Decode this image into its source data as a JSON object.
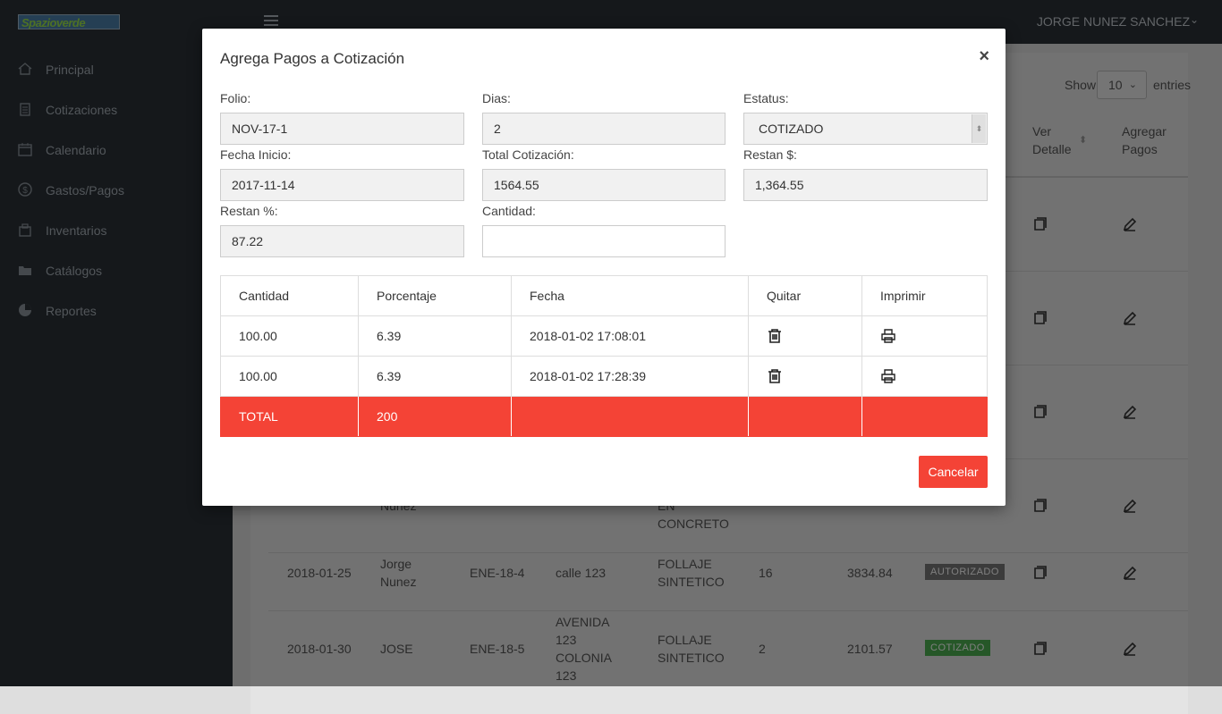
{
  "app": {
    "logo_text": "Spazioverde",
    "user_name": "JORGE NUNEZ SANCHEZ"
  },
  "sidebar": {
    "items": [
      {
        "label": "Principal",
        "icon": "home-icon"
      },
      {
        "label": "Cotizaciones",
        "icon": "clipboard-icon"
      },
      {
        "label": "Calendario",
        "icon": "calendar-icon"
      },
      {
        "label": "Gastos/Pagos",
        "icon": "dollar-icon"
      },
      {
        "label": "Inventarios",
        "icon": "inventory-icon"
      },
      {
        "label": "Catálogos",
        "icon": "folder-icon"
      },
      {
        "label": "Reportes",
        "icon": "pie-chart-icon"
      }
    ]
  },
  "list": {
    "show_label": "Show",
    "entries_label": "entries",
    "page_size": "10",
    "col_ver_detalle": "Ver Detalle",
    "col_agregar_pagos": "Agregar Pagos",
    "rows": [
      {
        "fecha": "",
        "cliente": "Nunez",
        "folio": "",
        "direccion": "",
        "tipo": "EN CONCRETO",
        "dias": "",
        "total": "",
        "estatus": ""
      },
      {
        "fecha": "2018-01-25",
        "cliente": "Jorge Nunez",
        "folio": "ENE-18-4",
        "direccion": "calle 123",
        "tipo": "FOLLAJE SINTETICO",
        "dias": "16",
        "total": "3834.84",
        "estatus": "AUTORIZADO"
      },
      {
        "fecha": "2018-01-30",
        "cliente": "JOSE",
        "folio": "ENE-18-5",
        "direccion": "AVENIDA 123 COLONIA 123",
        "tipo": "FOLLAJE SINTETICO",
        "dias": "2",
        "total": "2101.57",
        "estatus": "COTIZADO"
      }
    ],
    "colors": {
      "autorizado": "#777777",
      "cotizado": "#4caf50"
    }
  },
  "modal": {
    "title": "Agrega Pagos a Cotización",
    "close": "×",
    "fields": {
      "folio_label": "Folio:",
      "folio_value": "NOV-17-1",
      "dias_label": "Dias:",
      "dias_value": "2",
      "estatus_label": "Estatus:",
      "estatus_value": "COTIZADO",
      "fecha_inicio_label": "Fecha Inicio:",
      "fecha_inicio_value": "2017-11-14",
      "total_label": "Total Cotización:",
      "total_value": "1564.55",
      "restan_label": "Restan $:",
      "restan_value": "1,364.55",
      "restan_pct_label": "Restan %:",
      "restan_pct_value": "87.22",
      "cantidad_label": "Cantidad:",
      "cantidad_value": ""
    },
    "payments": {
      "headers": [
        "Cantidad",
        "Porcentaje",
        "Fecha",
        "Quitar",
        "Imprimir"
      ],
      "rows": [
        {
          "cantidad": "100.00",
          "porcentaje": "6.39",
          "fecha": "2018-01-02 17:08:01"
        },
        {
          "cantidad": "100.00",
          "porcentaje": "6.39",
          "fecha": "2018-01-02 17:28:39"
        }
      ],
      "total_label": "TOTAL",
      "total_value": "200",
      "total_color": "#f44336"
    },
    "cancel_label": "Cancelar"
  }
}
